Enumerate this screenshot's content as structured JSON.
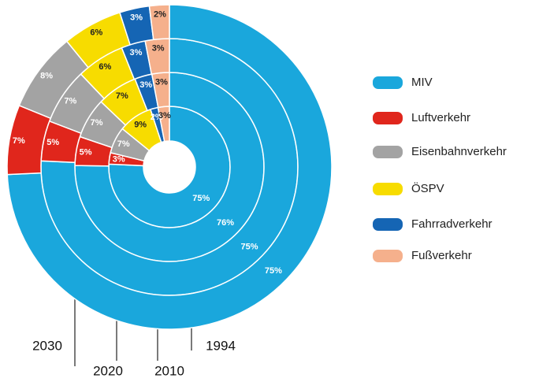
{
  "chart_data": {
    "type": "multi-donut",
    "categories": [
      "1994",
      "2010",
      "2020",
      "2030"
    ],
    "series": [
      {
        "name": "MIV",
        "color": "#1aa7dc",
        "values": [
          75,
          76,
          75,
          75
        ],
        "value_labels": [
          "75%",
          "76%",
          "75%",
          "75%"
        ]
      },
      {
        "name": "Luftverkehr",
        "color": "#e0261c",
        "values": [
          3,
          5,
          5,
          7
        ],
        "value_labels": [
          "3%",
          "5%",
          "5%",
          "7%"
        ]
      },
      {
        "name": "Eisenbahnverkehr",
        "color": "#a3a3a3",
        "values": [
          7,
          7,
          7,
          8
        ],
        "value_labels": [
          "7%",
          "7%",
          "7%",
          "8%"
        ]
      },
      {
        "name": "ÖSPV",
        "color": "#f7dc00",
        "values": [
          9,
          7,
          6,
          6
        ],
        "value_labels": [
          "9%",
          "7%",
          "6%",
          "6%"
        ]
      },
      {
        "name": "Fahrradverkehr",
        "color": "#1565b4",
        "values": [
          2,
          3,
          3,
          3
        ],
        "value_labels": [
          "2%",
          "3%",
          "3%",
          "3%"
        ]
      },
      {
        "name": "Fußverkehr",
        "color": "#f5b08c",
        "values": [
          3,
          3,
          3,
          2
        ],
        "value_labels": [
          "3%",
          "3%",
          "3%",
          "2%"
        ]
      }
    ]
  }
}
